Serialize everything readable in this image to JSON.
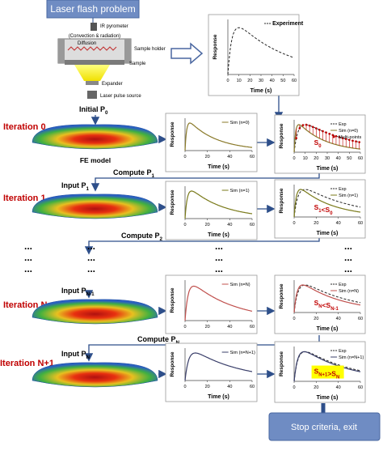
{
  "header": {
    "title": "Laser flash problem"
  },
  "apparatus": {
    "labels": [
      "IR pyrometer",
      "(Convection & radiation)",
      "Diffusion",
      "Sample holder",
      "Sample",
      "Expander",
      "Laser pulse source"
    ]
  },
  "experiment_chart": {
    "legend": "Experiment",
    "ylabel": "Response",
    "xlabel": "Time (s)",
    "xticks": [
      0,
      10,
      20,
      30,
      40,
      50,
      60
    ]
  },
  "gap": "...",
  "rows": [
    {
      "label": "Iteration 0",
      "input": [
        {
          "t": "Initial P",
          "s": "0"
        }
      ],
      "model_label": "FE model",
      "sim_chart": {
        "legend": [
          "Sim (n=0)"
        ],
        "ylabel": "Response",
        "xlabel": "Time (s)",
        "xticks": [
          0,
          20,
          40,
          60
        ],
        "color": "#8a7a2a"
      },
      "compare_chart": {
        "legend": [
          "Exp",
          "Sim (n=0)",
          "Multi-points"
        ],
        "ylabel": "Response",
        "xlabel": "Time (s)",
        "xticks": [
          0,
          10,
          20,
          30,
          40,
          50,
          60
        ],
        "color": "#8a7a2a"
      },
      "score": [
        {
          "t": "S",
          "s": "0"
        }
      ],
      "compute": [
        {
          "t": "Compute P",
          "s": "1"
        }
      ]
    },
    {
      "label": "Iteration 1",
      "input": [
        {
          "t": "Input P",
          "s": "1"
        }
      ],
      "sim_chart": {
        "legend": [
          "Sim (n=1)"
        ],
        "ylabel": "Response",
        "xlabel": "Time (s)",
        "xticks": [
          0,
          20,
          40,
          60
        ],
        "color": "#7a7a1a"
      },
      "compare_chart": {
        "legend": [
          "Exp",
          "Sim (n=1)"
        ],
        "ylabel": "Response",
        "xlabel": "Time (s)",
        "xticks": [
          0,
          20,
          40,
          60
        ],
        "color": "#7a7a1a"
      },
      "score": [
        {
          "t": "S",
          "s": "1"
        },
        {
          "t": "<S",
          "s": "0"
        }
      ],
      "compute": [
        {
          "t": "Compute P",
          "s": "2"
        }
      ]
    },
    {
      "label": "Iteration N",
      "input": [
        {
          "t": "Input P",
          "s": "N-1"
        }
      ],
      "sim_chart": {
        "legend": [
          "Sim (n=N)"
        ],
        "ylabel": "Response",
        "xticks": [
          0,
          20,
          40,
          60
        ],
        "color": "#c0504d"
      },
      "compare_chart": {
        "legend": [
          "Exp",
          "Sim (n=N)"
        ],
        "ylabel": "Response",
        "xlabel": "Time (s)",
        "xticks": [
          0,
          20,
          40,
          60
        ],
        "color": "#c0504d"
      },
      "score": [
        {
          "t": "S",
          "s": "N"
        },
        {
          "t": "<S",
          "s": "N-1"
        }
      ],
      "compute": [
        {
          "t": "Compute P",
          "s": "N"
        }
      ]
    },
    {
      "label": "Iteration N+1",
      "input": [
        {
          "t": "Input P",
          "s": "N"
        }
      ],
      "sim_chart": {
        "legend": [
          "Sim (n=N+1)"
        ],
        "ylabel": "Response",
        "xlabel": "Time (s)",
        "xticks": [
          0,
          20,
          40,
          60
        ],
        "color": "#3a3f6a"
      },
      "compare_chart": {
        "legend": [
          "Exp",
          "Sim (n=N+1)"
        ],
        "ylabel": "Response",
        "xlabel": "Time (s)",
        "xticks": [
          0,
          20,
          40,
          60
        ],
        "color": "#3a3f6a"
      },
      "score": [
        {
          "t": "S",
          "s": "N+1"
        },
        {
          "t": ">S",
          "s": "N"
        }
      ]
    }
  ],
  "footer": {
    "exit": "Stop criteria, exit"
  }
}
